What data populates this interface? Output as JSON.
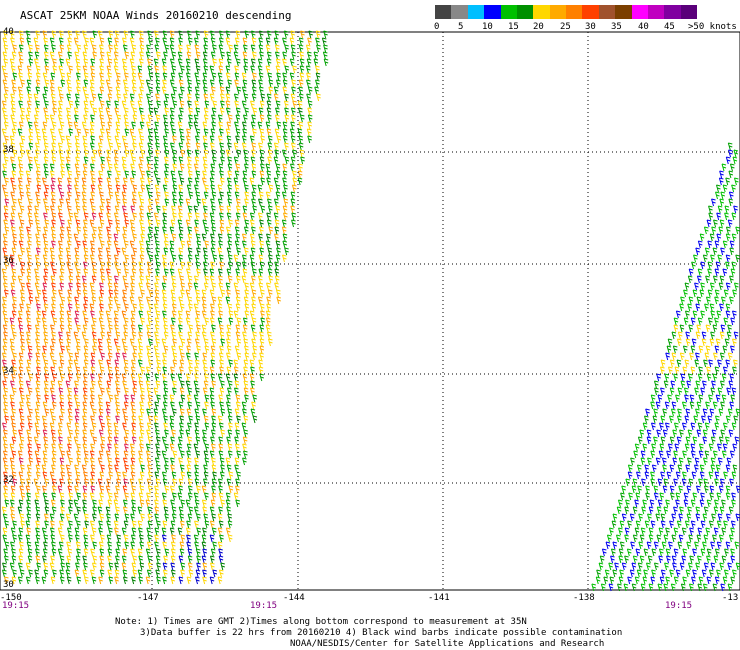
{
  "title": "ASCAT 25KM NOAA Winds 20160210 descending",
  "legend": {
    "colors": [
      "#444444",
      "#888888",
      "#00bfff",
      "#0000ff",
      "#00c000",
      "#009000",
      "#ffd700",
      "#ffaa00",
      "#ff8000",
      "#ff4000",
      "#a0522d",
      "#7b3f00",
      "#ff00ff",
      "#c000c0",
      "#8000a0",
      "#5a007a"
    ],
    "labels": [
      "0",
      "5",
      "10",
      "15",
      "20",
      "25",
      "30",
      "35",
      "40",
      "45",
      ">50 knots"
    ]
  },
  "lat_labels": [
    "40",
    "38",
    "36",
    "34",
    "32",
    "30"
  ],
  "lon_labels": [
    "-150",
    "-147",
    "-144",
    "-141",
    "-138",
    "-13"
  ],
  "times": [
    "19:15",
    "19:15",
    "19:15"
  ],
  "notes": {
    "line1": "Note: 1) Times are GMT 2)Times along bottom correspond to measurement at 35N",
    "line2": "3)Data buffer is 22 hrs from 20160210 4) Black wind barbs indicate possible contamination",
    "line3": "NOAA/NESDIS/Center for Satellite Applications and Research"
  }
}
